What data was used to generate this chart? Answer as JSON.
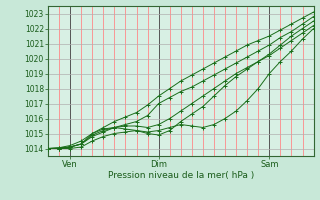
{
  "xlabel": "Pression niveau de la mer( hPa )",
  "ylim": [
    1013.5,
    1023.5
  ],
  "xlim": [
    0,
    72
  ],
  "yticks": [
    1014,
    1015,
    1016,
    1017,
    1018,
    1019,
    1020,
    1021,
    1022,
    1023
  ],
  "xtick_positions": [
    6,
    30,
    60
  ],
  "xtick_labels": [
    "Ven",
    "Dim",
    "Sam"
  ],
  "bg_color": "#c8e8d8",
  "plot_bg_color": "#d8f0e4",
  "grid_color_y": "#b0b0b0",
  "grid_color_x_minor": "#ff8888",
  "grid_color_x_major": "#555555",
  "line_color": "#1a6e1a",
  "series": [
    [
      0,
      1014.0,
      3,
      1014.05,
      6,
      1014.1,
      9,
      1014.3,
      12,
      1014.8,
      15,
      1015.1,
      18,
      1015.4,
      21,
      1015.6,
      24,
      1015.8,
      27,
      1016.2,
      30,
      1017.0,
      33,
      1017.4,
      36,
      1017.8,
      39,
      1018.1,
      42,
      1018.5,
      45,
      1018.9,
      48,
      1019.3,
      51,
      1019.7,
      54,
      1020.1,
      57,
      1020.5,
      60,
      1020.9,
      63,
      1021.4,
      66,
      1021.8,
      69,
      1022.3,
      72,
      1022.8
    ],
    [
      0,
      1014.0,
      3,
      1014.05,
      6,
      1014.2,
      9,
      1014.5,
      12,
      1015.0,
      15,
      1015.4,
      18,
      1015.8,
      21,
      1016.1,
      24,
      1016.4,
      27,
      1016.9,
      30,
      1017.5,
      33,
      1018.0,
      36,
      1018.5,
      39,
      1018.9,
      42,
      1019.3,
      45,
      1019.7,
      48,
      1020.1,
      51,
      1020.5,
      54,
      1020.9,
      57,
      1021.2,
      60,
      1021.5,
      63,
      1021.9,
      66,
      1022.3,
      69,
      1022.7,
      72,
      1023.1
    ],
    [
      0,
      1014.0,
      3,
      1014.0,
      6,
      1014.0,
      9,
      1014.1,
      12,
      1014.5,
      15,
      1014.8,
      18,
      1015.0,
      21,
      1015.1,
      24,
      1015.2,
      27,
      1015.0,
      30,
      1014.9,
      33,
      1015.2,
      36,
      1015.8,
      39,
      1016.3,
      42,
      1016.8,
      45,
      1017.5,
      48,
      1018.2,
      51,
      1018.8,
      54,
      1019.3,
      57,
      1019.8,
      60,
      1020.3,
      63,
      1020.9,
      66,
      1021.5,
      69,
      1022.0,
      72,
      1022.5
    ],
    [
      0,
      1014.0,
      3,
      1014.0,
      6,
      1014.1,
      9,
      1014.3,
      12,
      1015.0,
      15,
      1015.3,
      18,
      1015.4,
      21,
      1015.3,
      24,
      1015.2,
      27,
      1015.1,
      30,
      1015.2,
      33,
      1015.4,
      36,
      1015.6,
      39,
      1015.5,
      42,
      1015.4,
      45,
      1015.6,
      48,
      1016.0,
      51,
      1016.5,
      54,
      1017.2,
      57,
      1018.0,
      60,
      1019.0,
      63,
      1019.8,
      66,
      1020.5,
      69,
      1021.3,
      72,
      1022.0
    ],
    [
      0,
      1014.0,
      3,
      1014.0,
      6,
      1014.1,
      9,
      1014.3,
      12,
      1014.9,
      15,
      1015.2,
      18,
      1015.4,
      21,
      1015.5,
      24,
      1015.5,
      27,
      1015.4,
      30,
      1015.6,
      33,
      1016.0,
      36,
      1016.5,
      39,
      1017.0,
      42,
      1017.5,
      45,
      1018.0,
      48,
      1018.5,
      51,
      1019.0,
      54,
      1019.4,
      57,
      1019.8,
      60,
      1020.2,
      63,
      1020.7,
      66,
      1021.2,
      69,
      1021.7,
      72,
      1022.2
    ]
  ]
}
